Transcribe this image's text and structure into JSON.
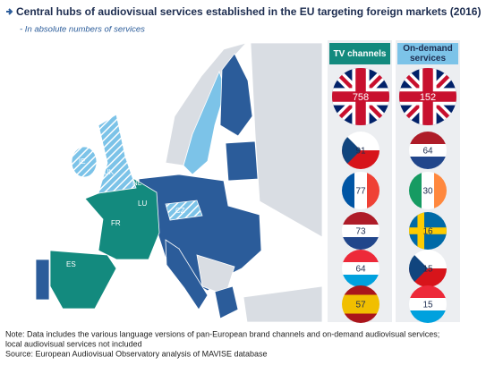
{
  "header": {
    "title": "Central hubs of audiovisual services established in the EU targeting foreign markets (2016)",
    "subtitle": "- In absolute numbers of services"
  },
  "map": {
    "labels": [
      "IE",
      "UK",
      "NL",
      "LU",
      "CZ",
      "FR",
      "ES"
    ]
  },
  "columns": [
    {
      "title": "TV channels",
      "values": [
        758,
        91,
        77,
        73,
        64,
        57
      ]
    },
    {
      "title": "On-demand services",
      "values": [
        152,
        64,
        30,
        16,
        15,
        15
      ]
    }
  ],
  "footer": {
    "note": [
      "Note: Data includes the various language versions of pan-European brand channels and on-demand audiovisual services;",
      "local audiovisual services not included"
    ],
    "source": "Source: European Audiovisual Observatory analysis of MAVISE database"
  }
}
